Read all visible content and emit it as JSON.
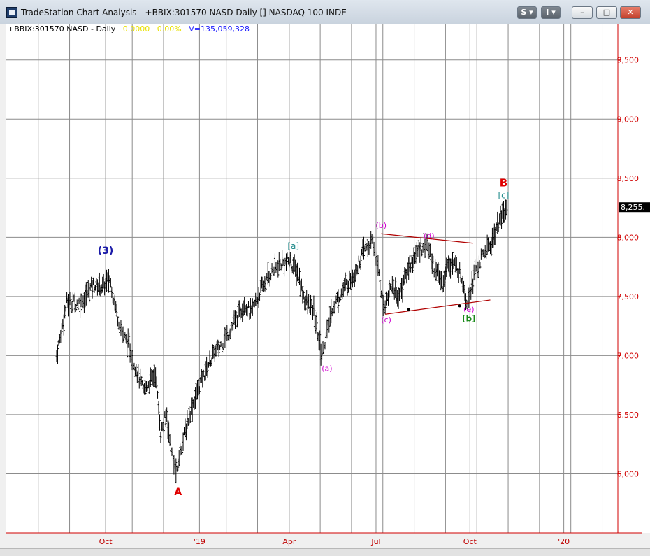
{
  "window": {
    "title": "TradeStation Chart Analysis - +BBIX:301570 NASD Daily [] NASDAQ 100 INDE",
    "button_s": "S",
    "button_i": "I",
    "minimize_label": "–",
    "restore_label": "□",
    "close_label": "✕"
  },
  "header": {
    "symbol": "+BBIX:301570 NASD - Daily",
    "change": "0.0000",
    "change_pct": "0.00%",
    "volume": "V=135,059,328",
    "change_color": "#e8e000",
    "volume_color": "#1a1aff"
  },
  "colors": {
    "bars": "#000000",
    "grid": "#8c8c8c",
    "axis": "#d00000",
    "price_label": "#d00000",
    "time_label": "#c00000",
    "wave_blue": "#1a1aa8",
    "wave_red": "#e00000",
    "wave_teal": "#1f8a8a",
    "wave_magenta": "#d000d0",
    "wave_green": "#1a8a1a",
    "trendline": "#b00000"
  },
  "chart_data": {
    "type": "ohlc",
    "symbol": "+BBIX:301570 NASD",
    "period": "Daily",
    "title": "NASDAQ 100 INDE",
    "ylim": [
      5500,
      9800
    ],
    "price_ticks": [
      "6,000",
      "6,500",
      "7,000",
      "7,500",
      "8,000",
      "8,500",
      "9,000",
      "9,500"
    ],
    "price_tick_values": [
      6000,
      6500,
      7000,
      7500,
      8000,
      8500,
      9000,
      9500
    ],
    "last_price_label": "8,255.",
    "last_price": 8255,
    "time_ticks": [
      {
        "label": "Oct",
        "day": 48
      },
      {
        "label": "'19",
        "day": 140
      },
      {
        "label": "Apr",
        "day": 228
      },
      {
        "label": "Jul",
        "day": 313
      },
      {
        "label": "Oct",
        "day": 405
      },
      {
        "label": "'20",
        "day": 497
      }
    ],
    "xlim": [
      -50,
      550
    ],
    "anchors": [
      [
        0,
        7000
      ],
      [
        10,
        7450
      ],
      [
        25,
        7450
      ],
      [
        35,
        7600
      ],
      [
        45,
        7580
      ],
      [
        52,
        7650
      ],
      [
        62,
        7250
      ],
      [
        72,
        7050
      ],
      [
        85,
        6700
      ],
      [
        97,
        6850
      ],
      [
        102,
        6350
      ],
      [
        108,
        6500
      ],
      [
        112,
        6200
      ],
      [
        118,
        6000
      ],
      [
        120,
        6150
      ],
      [
        130,
        6500
      ],
      [
        140,
        6750
      ],
      [
        150,
        6950
      ],
      [
        162,
        7100
      ],
      [
        172,
        7250
      ],
      [
        184,
        7450
      ],
      [
        190,
        7350
      ],
      [
        200,
        7550
      ],
      [
        210,
        7700
      ],
      [
        220,
        7780
      ],
      [
        228,
        7800
      ],
      [
        236,
        7700
      ],
      [
        244,
        7450
      ],
      [
        252,
        7380
      ],
      [
        260,
        7000
      ],
      [
        270,
        7400
      ],
      [
        280,
        7550
      ],
      [
        292,
        7700
      ],
      [
        302,
        7900
      ],
      [
        310,
        7950
      ],
      [
        316,
        7700
      ],
      [
        320,
        7400
      ],
      [
        328,
        7600
      ],
      [
        335,
        7500
      ],
      [
        345,
        7750
      ],
      [
        355,
        7900
      ],
      [
        362,
        7950
      ],
      [
        370,
        7750
      ],
      [
        378,
        7600
      ],
      [
        384,
        7800
      ],
      [
        392,
        7750
      ],
      [
        398,
        7650
      ],
      [
        402,
        7450
      ],
      [
        410,
        7700
      ],
      [
        418,
        7850
      ],
      [
        426,
        7950
      ],
      [
        432,
        8100
      ],
      [
        438,
        8200
      ],
      [
        442,
        8250
      ]
    ],
    "wave_labels": [
      {
        "text": "(3)",
        "day": 48,
        "price": 7860,
        "color": "wave_blue",
        "size": 14,
        "bold": true
      },
      {
        "text": "A",
        "day": 119,
        "price": 5820,
        "color": "wave_red",
        "size": 14,
        "bold": true
      },
      {
        "text": "[a]",
        "day": 232,
        "price": 7900,
        "color": "wave_teal",
        "size": 12,
        "bold": false
      },
      {
        "text": "(a)",
        "day": 265,
        "price": 6870,
        "color": "wave_magenta",
        "size": 11,
        "bold": false
      },
      {
        "text": "(b)",
        "day": 318,
        "price": 8080,
        "color": "wave_magenta",
        "size": 11,
        "bold": false
      },
      {
        "text": "(c)",
        "day": 323,
        "price": 7280,
        "color": "wave_magenta",
        "size": 11,
        "bold": false
      },
      {
        "text": "(d)",
        "day": 365,
        "price": 7990,
        "color": "wave_magenta",
        "size": 11,
        "bold": false
      },
      {
        "text": "(e)",
        "day": 404,
        "price": 7370,
        "color": "wave_magenta",
        "size": 11,
        "bold": false
      },
      {
        "text": "[b]",
        "day": 404,
        "price": 7290,
        "color": "wave_green",
        "size": 12,
        "bold": true
      },
      {
        "text": "B",
        "day": 438,
        "price": 8430,
        "color": "wave_red",
        "size": 15,
        "bold": true
      },
      {
        "text": "[c]",
        "day": 438,
        "price": 8330,
        "color": "wave_teal",
        "size": 12,
        "bold": false
      }
    ],
    "trendlines": [
      {
        "from": [
          318,
          8030
        ],
        "to": [
          408,
          7950
        ]
      },
      {
        "from": [
          322,
          7350
        ],
        "to": [
          425,
          7470
        ]
      }
    ],
    "trendline_points": [
      [
        345,
        7390
      ],
      [
        395,
        7420
      ]
    ]
  }
}
